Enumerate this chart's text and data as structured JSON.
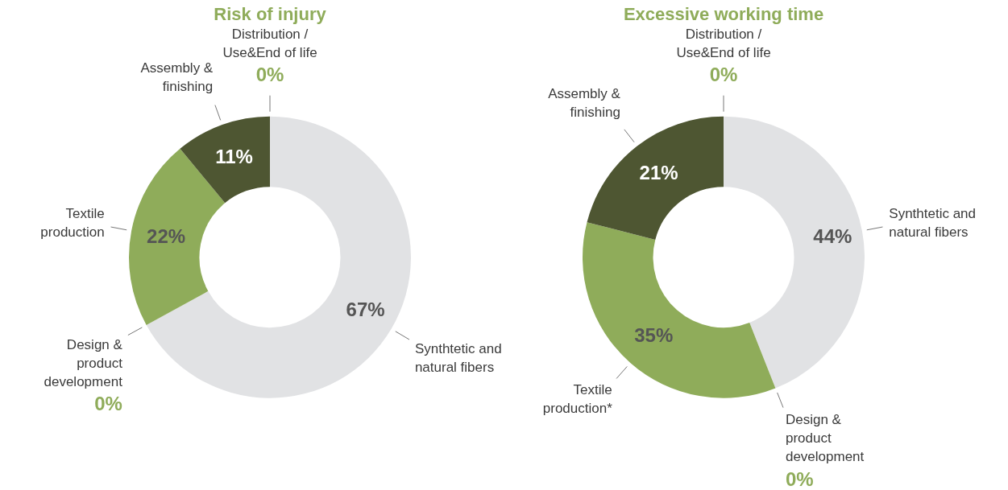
{
  "chart_data": [
    {
      "type": "donut",
      "title": "Risk of injury",
      "categories": [
        "Synthtetic and natural fibers",
        "Design & product development",
        "Textile production",
        "Assembly & finishing",
        "Distribution / Use&End of life"
      ],
      "values": [
        67,
        0,
        22,
        11,
        0
      ],
      "value_labels": [
        "67%",
        "0%",
        "22%",
        "11%",
        "0%"
      ],
      "colors": [
        "#e1e2e4",
        "#8fac5a",
        "#8fac5a",
        "#4e5632",
        "#8fac5a"
      ]
    },
    {
      "type": "donut",
      "title": "Excessive working time",
      "categories": [
        "Synthtetic and natural fibers",
        "Design & product development",
        "Textile production*",
        "Assembly & finishing",
        "Distribution / Use&End of life"
      ],
      "values": [
        44,
        0,
        35,
        21,
        0
      ],
      "value_labels": [
        "44%",
        "0%",
        "35%",
        "21%",
        "0%"
      ],
      "colors": [
        "#e1e2e4",
        "#8fac5a",
        "#8fac5a",
        "#4e5632",
        "#8fac5a"
      ]
    }
  ]
}
